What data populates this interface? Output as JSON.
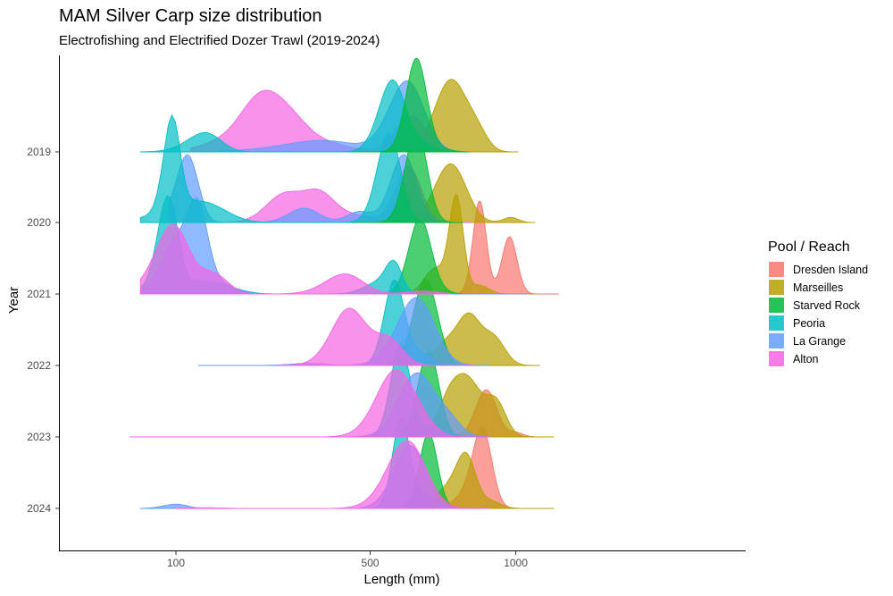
{
  "chart_data": {
    "type": "ridgeline",
    "title": "MAM Silver Carp size distribution",
    "subtitle": "Electrofishing and Electrified Dozer Trawl (2019-2024)",
    "xlabel": "Length (mm)",
    "ylabel": "Year",
    "x_scale": "sqrt",
    "xlim": [
      0,
      1120
    ],
    "x_ticks": [
      100,
      500,
      1000
    ],
    "x_tick_labels": [
      "100",
      "500",
      "1000"
    ],
    "y_categories": [
      "2019",
      "2020",
      "2021",
      "2022",
      "2023",
      "2024"
    ],
    "grid": false,
    "legend": {
      "title": "Pool / Reach",
      "position": "right",
      "entries": [
        "Dresden Island",
        "Marseilles",
        "Starved Rock",
        "Peoria",
        "La Grange",
        "Alton"
      ]
    },
    "colors": {
      "Dresden Island": "#F8766D",
      "Marseilles": "#B79F00",
      "Starved Rock": "#00BA38",
      "Peoria": "#00BFC4",
      "La Grange": "#619CFF",
      "Alton": "#F564E3"
    },
    "series": [
      {
        "year": "2019",
        "reach": "Marseilles",
        "range": [
          590,
          1010
        ],
        "peaks": [
          [
            755,
            1.0,
            55
          ],
          [
            850,
            0.25,
            40
          ]
        ]
      },
      {
        "year": "2019",
        "reach": "Alton",
        "range": [
          120,
          780
        ],
        "peaks": [
          [
            145,
            0.06,
            30
          ],
          [
            230,
            0.62,
            40
          ],
          [
            290,
            0.45,
            45
          ],
          [
            380,
            0.12,
            60
          ],
          [
            625,
            0.5,
            50
          ]
        ]
      },
      {
        "year": "2019",
        "reach": "La Grange",
        "range": [
          160,
          760
        ],
        "peaks": [
          [
            370,
            0.16,
            90
          ],
          [
            610,
            0.99,
            55
          ]
        ]
      },
      {
        "year": "2019",
        "reach": "Peoria",
        "range": [
          60,
          790
        ],
        "peaks": [
          [
            140,
            0.27,
            25
          ],
          [
            565,
            1.0,
            40
          ],
          [
            660,
            0.1,
            40
          ]
        ]
      },
      {
        "year": "2019",
        "reach": "Starved Rock",
        "range": [
          450,
          820
        ],
        "peaks": [
          [
            640,
            1.3,
            33
          ],
          [
            710,
            0.05,
            40
          ]
        ]
      },
      {
        "year": "2020",
        "reach": "Marseilles",
        "range": [
          560,
          1080
        ],
        "peaks": [
          [
            755,
            0.82,
            55
          ],
          [
            980,
            0.07,
            30
          ]
        ]
      },
      {
        "year": "2020",
        "reach": "Alton",
        "range": [
          90,
          830
        ],
        "peaks": [
          [
            280,
            0.35,
            35
          ],
          [
            360,
            0.42,
            40
          ],
          [
            450,
            0.1,
            50
          ],
          [
            615,
            0.78,
            40
          ]
        ]
      },
      {
        "year": "2020",
        "reach": "La Grange",
        "range": [
          90,
          750
        ],
        "peaks": [
          [
            115,
            0.95,
            15
          ],
          [
            330,
            0.2,
            35
          ],
          [
            470,
            0.15,
            35
          ],
          [
            600,
            0.95,
            40
          ]
        ]
      },
      {
        "year": "2020",
        "reach": "Peoria",
        "range": [
          60,
          760
        ],
        "peaks": [
          [
            95,
            1.3,
            10
          ],
          [
            130,
            0.3,
            40
          ],
          [
            555,
            1.25,
            35
          ]
        ]
      },
      {
        "year": "2020",
        "reach": "Starved Rock",
        "range": [
          450,
          800
        ],
        "peaks": [
          [
            640,
            1.3,
            35
          ]
        ]
      },
      {
        "year": "2021",
        "reach": "Dresden Island",
        "range": [
          760,
          1180
        ],
        "peaks": [
          [
            860,
            1.3,
            25
          ],
          [
            975,
            0.8,
            30
          ]
        ]
      },
      {
        "year": "2021",
        "reach": "Marseilles",
        "range": [
          590,
          1080
        ],
        "peaks": [
          [
            700,
            0.35,
            35
          ],
          [
            775,
            1.35,
            25
          ],
          [
            860,
            0.12,
            35
          ]
        ]
      },
      {
        "year": "2021",
        "reach": "Starved Rock",
        "range": [
          450,
          1030
        ],
        "peaks": [
          [
            650,
            1.0,
            35
          ],
          [
            690,
            0.1,
            40
          ]
        ]
      },
      {
        "year": "2021",
        "reach": "Peoria",
        "range": [
          60,
          720
        ],
        "peaks": [
          [
            90,
            1.3,
            12
          ],
          [
            140,
            0.18,
            40
          ],
          [
            520,
            0.15,
            40
          ],
          [
            570,
            0.4,
            25
          ]
        ]
      },
      {
        "year": "2021",
        "reach": "La Grange",
        "range": [
          60,
          1050
        ],
        "peaks": [
          [
            95,
            0.6,
            15
          ],
          [
            128,
            1.15,
            15
          ],
          [
            150,
            0.2,
            30
          ]
        ]
      },
      {
        "year": "2021",
        "reach": "Alton",
        "range": [
          60,
          750
        ],
        "peaks": [
          [
            95,
            0.95,
            20
          ],
          [
            150,
            0.3,
            25
          ],
          [
            430,
            0.28,
            50
          ],
          [
            660,
            0.04,
            50
          ]
        ]
      },
      {
        "year": "2022",
        "reach": "Marseilles",
        "range": [
          590,
          1100
        ],
        "peaks": [
          [
            740,
            0.3,
            45
          ],
          [
            820,
            0.62,
            40
          ],
          [
            910,
            0.4,
            45
          ]
        ]
      },
      {
        "year": "2022",
        "reach": "Starved Rock",
        "range": [
          470,
          840
        ],
        "peaks": [
          [
            670,
            1.2,
            40
          ]
        ]
      },
      {
        "year": "2022",
        "reach": "Peoria",
        "range": [
          260,
          840
        ],
        "peaks": [
          [
            570,
            1.15,
            30
          ],
          [
            640,
            0.2,
            40
          ]
        ]
      },
      {
        "year": "2022",
        "reach": "La Grange",
        "range": [
          130,
          900
        ],
        "peaks": [
          [
            340,
            0.03,
            40
          ],
          [
            640,
            0.95,
            60
          ]
        ]
      },
      {
        "year": "2022",
        "reach": "Alton",
        "range": [
          270,
          840
        ],
        "peaks": [
          [
            440,
            0.78,
            45
          ],
          [
            550,
            0.38,
            45
          ]
        ]
      },
      {
        "year": "2023",
        "reach": "Dresden Island",
        "range": [
          660,
          1130
        ],
        "peaks": [
          [
            885,
            0.66,
            40
          ],
          [
            1000,
            0.06,
            30
          ]
        ]
      },
      {
        "year": "2023",
        "reach": "Marseilles",
        "range": [
          620,
          1160
        ],
        "peaks": [
          [
            750,
            0.5,
            40
          ],
          [
            820,
            0.72,
            45
          ],
          [
            920,
            0.5,
            40
          ]
        ]
      },
      {
        "year": "2023",
        "reach": "Starved Rock",
        "range": [
          500,
          900
        ],
        "peaks": [
          [
            680,
            1.2,
            35
          ]
        ]
      },
      {
        "year": "2023",
        "reach": "Peoria",
        "range": [
          260,
          880
        ],
        "peaks": [
          [
            590,
            1.3,
            30
          ],
          [
            700,
            0.12,
            40
          ]
        ]
      },
      {
        "year": "2023",
        "reach": "La Grange",
        "range": [
          400,
          900
        ],
        "peaks": [
          [
            640,
            0.88,
            55
          ],
          [
            745,
            0.25,
            45
          ]
        ]
      },
      {
        "year": "2023",
        "reach": "Alton",
        "range": [
          50,
          900
        ],
        "peaks": [
          [
            570,
            0.88,
            55
          ],
          [
            650,
            0.2,
            50
          ]
        ]
      },
      {
        "year": "2024",
        "reach": "Dresden Island",
        "range": [
          600,
          1110
        ],
        "peaks": [
          [
            870,
            1.1,
            36
          ],
          [
            800,
            0.15,
            40
          ]
        ]
      },
      {
        "year": "2024",
        "reach": "Marseilles",
        "range": [
          570,
          1160
        ],
        "peaks": [
          [
            740,
            0.25,
            40
          ],
          [
            810,
            0.72,
            35
          ],
          [
            900,
            0.1,
            40
          ]
        ]
      },
      {
        "year": "2024",
        "reach": "Starved Rock",
        "range": [
          350,
          850
        ],
        "peaks": [
          [
            680,
            1.05,
            30
          ]
        ]
      },
      {
        "year": "2024",
        "reach": "Peoria",
        "range": [
          370,
          850
        ],
        "peaks": [
          [
            590,
            1.15,
            25
          ],
          [
            640,
            0.25,
            40
          ]
        ]
      },
      {
        "year": "2024",
        "reach": "La Grange",
        "range": [
          60,
          870
        ],
        "peaks": [
          [
            100,
            0.06,
            15
          ],
          [
            620,
            0.88,
            50
          ]
        ]
      },
      {
        "year": "2024",
        "reach": "Alton",
        "range": [
          100,
          900
        ],
        "peaks": [
          [
            610,
            0.95,
            60
          ],
          [
            140,
            0.01,
            30
          ]
        ]
      }
    ]
  }
}
